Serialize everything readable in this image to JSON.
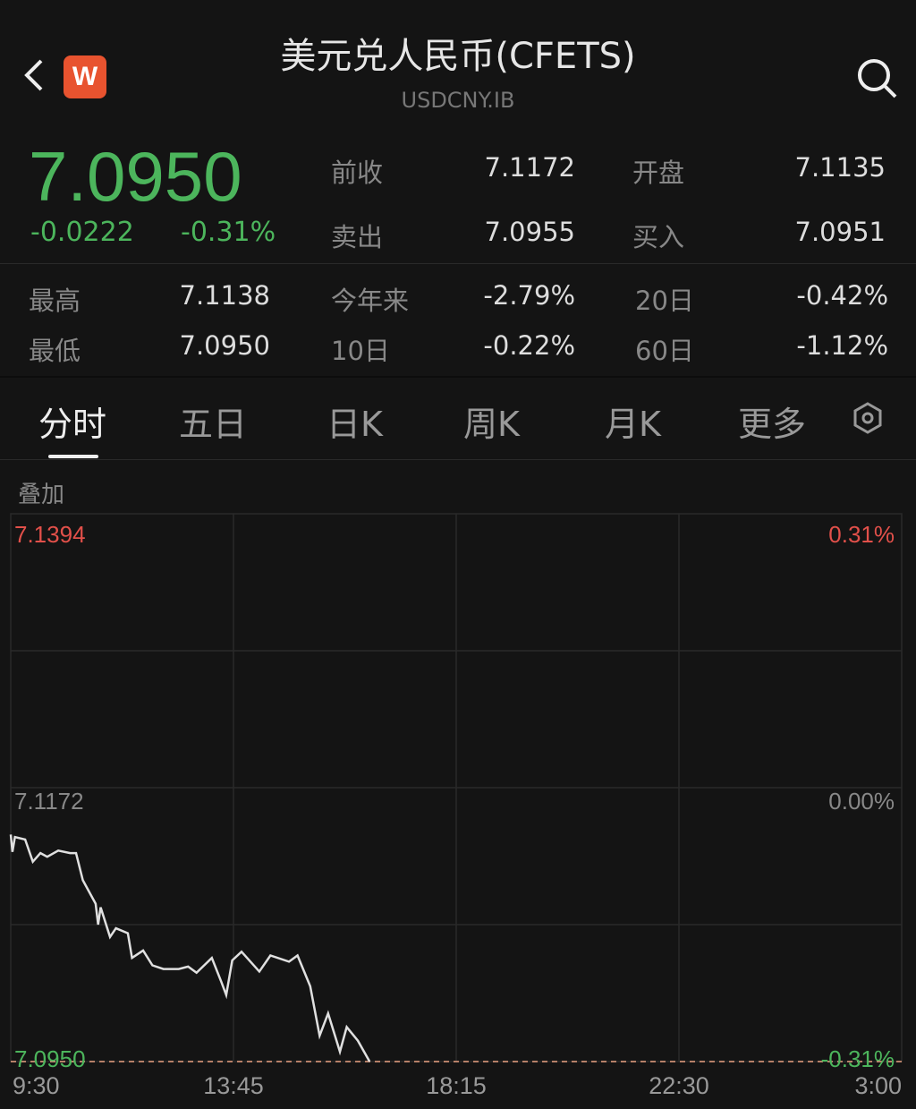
{
  "header": {
    "title": "美元兑人民币(CFETS)",
    "subtitle": "USDCNY.IB",
    "logo_letter": "W",
    "back_icon": "chevron-left-icon",
    "search_icon": "search-icon"
  },
  "quote": {
    "price": "7.0950",
    "change": "-0.0222",
    "change_pct": "-0.31%",
    "stats": [
      {
        "label": "前收",
        "value": "7.1172"
      },
      {
        "label": "开盘",
        "value": "7.1135"
      },
      {
        "label": "卖出",
        "value": "7.0955"
      },
      {
        "label": "买入",
        "value": "7.0951"
      },
      {
        "label": "最高",
        "value": "7.1138"
      },
      {
        "label": "今年来",
        "value": "-2.79%"
      },
      {
        "label": "20日",
        "value": "-0.42%"
      },
      {
        "label": "最低",
        "value": "7.0950"
      },
      {
        "label": "10日",
        "value": "-0.22%"
      },
      {
        "label": "60日",
        "value": "-1.12%"
      }
    ]
  },
  "tabs": [
    {
      "label": "分时",
      "active": true
    },
    {
      "label": "五日"
    },
    {
      "label": "日K"
    },
    {
      "label": "周K"
    },
    {
      "label": "月K"
    },
    {
      "label": "更多"
    }
  ],
  "settings_icon": "hexagon-settings-icon",
  "overlay_label": "叠加",
  "colors": {
    "up": "#e2504a",
    "down": "#4cb55c",
    "line": "#e0e0e0",
    "bg": "#141414"
  },
  "chart_data": {
    "type": "line",
    "x_ticks": [
      "9:30",
      "13:45",
      "18:15",
      "22:30",
      "3:00"
    ],
    "y_left_ticks": [
      "7.1394",
      "7.1172",
      "7.0950"
    ],
    "y_right_ticks": [
      "0.31%",
      "0.00%",
      "-0.31%"
    ],
    "ylim": [
      7.095,
      7.1394
    ],
    "reference_price": 7.1172,
    "grid": true,
    "series": [
      {
        "points": [
          [
            "9:30",
            7.1134
          ],
          [
            "9:32",
            7.112
          ],
          [
            "9:35",
            7.1132
          ],
          [
            "9:47",
            7.113
          ],
          [
            "9:56",
            7.1112
          ],
          [
            "10:05",
            7.1119
          ],
          [
            "10:13",
            7.1116
          ],
          [
            "10:26",
            7.1121
          ],
          [
            "10:40",
            7.1119
          ],
          [
            "10:47",
            7.1119
          ],
          [
            "10:55",
            7.1097
          ],
          [
            "11:10",
            7.1078
          ],
          [
            "11:13",
            7.1061
          ],
          [
            "11:16",
            7.1075
          ],
          [
            "11:27",
            7.1051
          ],
          [
            "11:34",
            7.1058
          ],
          [
            "11:48",
            7.1054
          ],
          [
            "11:53",
            7.1034
          ],
          [
            "12:06",
            7.104
          ],
          [
            "12:17",
            7.1028
          ],
          [
            "12:30",
            7.1025
          ],
          [
            "12:48",
            7.1025
          ],
          [
            "12:59",
            7.1027
          ],
          [
            "13:09",
            7.1022
          ],
          [
            "13:27",
            7.1034
          ],
          [
            "13:38",
            7.1015
          ],
          [
            "13:44",
            7.1004
          ],
          [
            "13:51",
            7.1032
          ],
          [
            "14:02",
            7.1039
          ],
          [
            "14:23",
            7.1023
          ],
          [
            "14:36",
            7.1036
          ],
          [
            "14:58",
            7.1031
          ],
          [
            "15:08",
            7.1036
          ],
          [
            "15:23",
            7.1011
          ],
          [
            "15:34",
            7.0971
          ],
          [
            "15:44",
            7.0989
          ],
          [
            "15:58",
            7.0958
          ],
          [
            "16:06",
            7.0978
          ],
          [
            "16:19",
            7.0967
          ],
          [
            "16:33",
            7.095
          ]
        ]
      }
    ]
  }
}
